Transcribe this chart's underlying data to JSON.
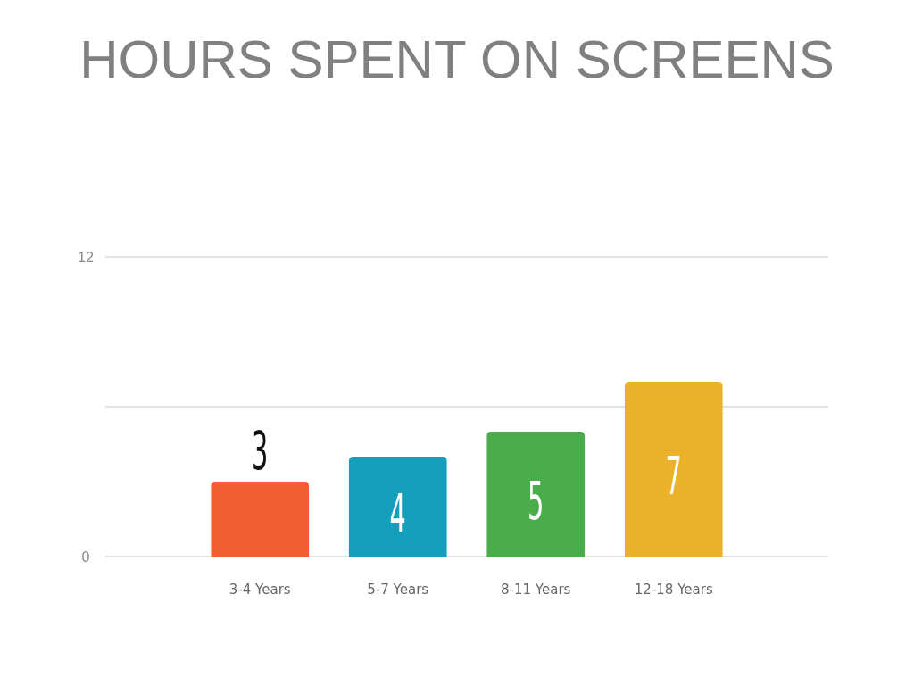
{
  "chart_data": {
    "type": "bar",
    "title": "HOURS SPENT ON SCREENS",
    "categories": [
      "3-4 Years",
      "5-7 Years",
      "8-11 Years",
      "12-18 Years"
    ],
    "values": [
      3,
      4,
      5,
      7
    ],
    "colors": [
      "#f05e32",
      "#149fbc",
      "#4aad4c",
      "#ebb12a"
    ],
    "ylim": [
      0,
      12
    ],
    "yticks": [
      0,
      {
        "value": 6,
        "label": null
      },
      12
    ],
    "grid": "y",
    "data_labels": true
  }
}
